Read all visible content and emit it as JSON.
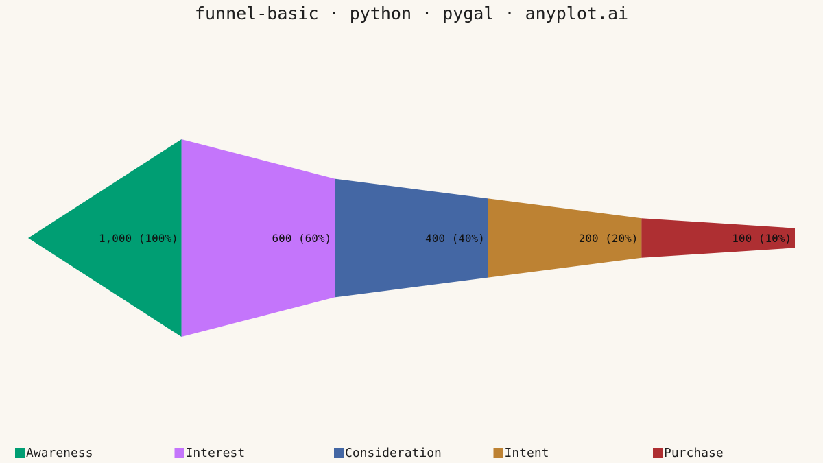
{
  "chart_data": {
    "type": "funnel",
    "title": "funnel-basic · python · pygal · anyplot.ai",
    "categories": [
      "Awareness",
      "Interest",
      "Consideration",
      "Intent",
      "Purchase"
    ],
    "values": [
      1000,
      600,
      400,
      200,
      100
    ],
    "value_labels": [
      "1,000 (100%)",
      "600 (60%)",
      "400 (40%)",
      "200 (20%)",
      "100 (10%)"
    ],
    "percent_of_first": [
      100,
      60,
      40,
      20,
      10
    ],
    "colors": [
      "#009E73",
      "#C475FB",
      "#4467A4",
      "#BD8233",
      "#AE2F32"
    ],
    "legend_position": "bottom",
    "orientation": "horizontal"
  }
}
